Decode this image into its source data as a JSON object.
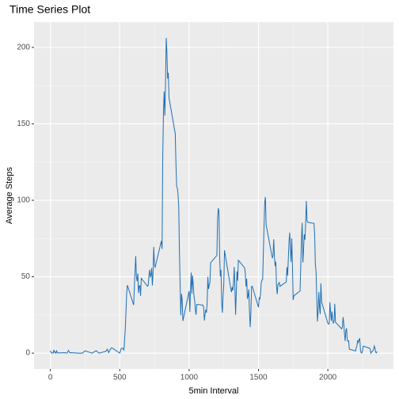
{
  "chart_data": {
    "type": "line",
    "title": "Time Series Plot",
    "x_label": "5min Interval",
    "y_label": "Average Steps",
    "x": [
      0,
      5,
      10,
      15,
      20,
      25,
      30,
      35,
      40,
      45,
      50,
      55,
      100,
      110,
      120,
      130,
      140,
      150,
      200,
      230,
      250,
      300,
      330,
      350,
      400,
      410,
      420,
      430,
      440,
      450,
      500,
      510,
      520,
      530,
      540,
      550,
      555,
      600,
      610,
      615,
      620,
      625,
      630,
      635,
      640,
      645,
      650,
      655,
      700,
      705,
      710,
      715,
      720,
      725,
      730,
      735,
      740,
      745,
      750,
      755,
      800,
      805,
      810,
      815,
      820,
      825,
      830,
      835,
      840,
      845,
      850,
      855,
      900,
      905,
      910,
      915,
      920,
      925,
      930,
      935,
      940,
      945,
      950,
      955,
      1000,
      1005,
      1010,
      1015,
      1020,
      1025,
      1030,
      1035,
      1040,
      1045,
      1050,
      1055,
      1100,
      1105,
      1110,
      1115,
      1120,
      1125,
      1130,
      1135,
      1140,
      1145,
      1150,
      1155,
      1200,
      1205,
      1210,
      1215,
      1220,
      1225,
      1230,
      1235,
      1240,
      1245,
      1250,
      1255,
      1300,
      1305,
      1310,
      1315,
      1320,
      1325,
      1330,
      1335,
      1340,
      1345,
      1350,
      1355,
      1400,
      1405,
      1410,
      1415,
      1420,
      1425,
      1430,
      1435,
      1440,
      1445,
      1450,
      1455,
      1500,
      1505,
      1510,
      1515,
      1520,
      1525,
      1530,
      1535,
      1540,
      1545,
      1550,
      1555,
      1600,
      1605,
      1610,
      1615,
      1620,
      1625,
      1630,
      1635,
      1640,
      1645,
      1650,
      1655,
      1700,
      1705,
      1710,
      1715,
      1720,
      1725,
      1730,
      1735,
      1740,
      1745,
      1750,
      1755,
      1800,
      1805,
      1810,
      1815,
      1820,
      1825,
      1830,
      1835,
      1840,
      1845,
      1850,
      1855,
      1900,
      1905,
      1910,
      1915,
      1920,
      1925,
      1930,
      1935,
      1940,
      1945,
      1950,
      1955,
      2000,
      2005,
      2010,
      2015,
      2020,
      2025,
      2030,
      2035,
      2040,
      2045,
      2050,
      2055,
      2100,
      2105,
      2110,
      2115,
      2120,
      2125,
      2130,
      2135,
      2140,
      2145,
      2150,
      2155,
      2200,
      2205,
      2210,
      2215,
      2220,
      2225,
      2230,
      2235,
      2240,
      2245,
      2250,
      2255,
      2300,
      2305,
      2310,
      2315,
      2320,
      2325,
      2330,
      2335,
      2340,
      2345,
      2350,
      2355
    ],
    "series": [
      {
        "name": "Average Steps",
        "color": "#1f6fb4",
        "values": [
          1.7,
          0.3,
          0.1,
          0.2,
          0.1,
          2.1,
          0.5,
          0.9,
          0,
          1.5,
          0.3,
          0.1,
          0.3,
          0.2,
          0,
          1.8,
          0.2,
          0.3,
          0,
          0,
          1.5,
          0,
          1.6,
          0,
          1.2,
          2.6,
          0.3,
          2.3,
          3.5,
          3.1,
          0,
          3.0,
          3.3,
          2.1,
          16,
          39.5,
          44.5,
          31.5,
          53.8,
          63.5,
          50.0,
          47.1,
          52.1,
          39.3,
          44.0,
          44.2,
          37.4,
          49.0,
          43.8,
          44.4,
          50.5,
          54.5,
          49.9,
          50.9,
          55.7,
          44.3,
          52.3,
          69.5,
          57.8,
          56.2,
          73.4,
          68.2,
          129.4,
          157.5,
          171.2,
          155.4,
          177.3,
          206.2,
          195.9,
          179.6,
          183.4,
          167.0,
          143.5,
          124.0,
          109.1,
          108.1,
          103.7,
          95.9,
          66.2,
          45.2,
          24.8,
          38.8,
          35.0,
          21.1,
          40.6,
          27.0,
          42.4,
          52.7,
          38.9,
          50.8,
          44.3,
          37.4,
          34.7,
          28.3,
          25.1,
          31.9,
          31.4,
          29.7,
          21.3,
          25.5,
          28.4,
          26.5,
          33.4,
          50.0,
          42.0,
          44.6,
          46.0,
          59.2,
          63.9,
          87.7,
          94.8,
          92.8,
          63.4,
          50.2,
          54.5,
          32.4,
          26.5,
          37.7,
          45.1,
          67.3,
          42.3,
          39.9,
          43.3,
          41.0,
          46.2,
          56.4,
          42.8,
          25.1,
          40.0,
          53.5,
          47.3,
          60.8,
          55.8,
          52.0,
          43.6,
          48.7,
          35.5,
          37.5,
          41.8,
          27.5,
          17.1,
          26.1,
          43.6,
          43.8,
          30.0,
          36.1,
          35.5,
          38.8,
          46.0,
          47.8,
          48.1,
          65.3,
          82.9,
          98.7,
          102.1,
          84.0,
          62.1,
          64.1,
          74.5,
          63.2,
          56.9,
          59.8,
          43.9,
          38.6,
          44.7,
          45.5,
          46.2,
          43.7,
          46.6,
          56.3,
          50.7,
          61.2,
          72.7,
          78.9,
          68.9,
          59.7,
          75.1,
          56.5,
          34.8,
          37.5,
          40.7,
          58.0,
          74.7,
          85.3,
          59.3,
          67.8,
          77.7,
          74.2,
          85.3,
          99.5,
          86.6,
          85.6,
          84.9,
          77.8,
          58.0,
          53.4,
          36.3,
          20.7,
          27.4,
          40.0,
          30.2,
          25.5,
          45.7,
          33.5,
          19.6,
          19.0,
          19.3,
          33.3,
          26.8,
          21.2,
          27.3,
          21.3,
          19.5,
          21.3,
          32.3,
          20.2,
          15.9,
          17.2,
          23.5,
          19.2,
          12.5,
          8.0,
          14.7,
          16.3,
          8.7,
          7.8,
          8.1,
          2.6,
          1.5,
          3.7,
          4.8,
          8.5,
          7.1,
          8.7,
          9.8,
          2.2,
          0.3,
          0.1,
          1.6,
          4.6,
          3.3,
          2.8,
          0,
          0.8,
          1.0,
          1.6,
          2.6,
          4.7,
          3.3,
          0.6,
          0.2,
          1.1
        ]
      }
    ],
    "xlim": [
      -118,
      2473
    ],
    "xticks": [
      0,
      500,
      1000,
      1500,
      2000
    ],
    "x_minor_grid": [
      250,
      750,
      1250,
      1750,
      2250
    ],
    "ylim": [
      -10.3,
      216.5
    ],
    "yticks": [
      0,
      50,
      100,
      150,
      200
    ],
    "y_minor_grid": [
      25,
      75,
      125,
      175
    ],
    "grid": true
  }
}
